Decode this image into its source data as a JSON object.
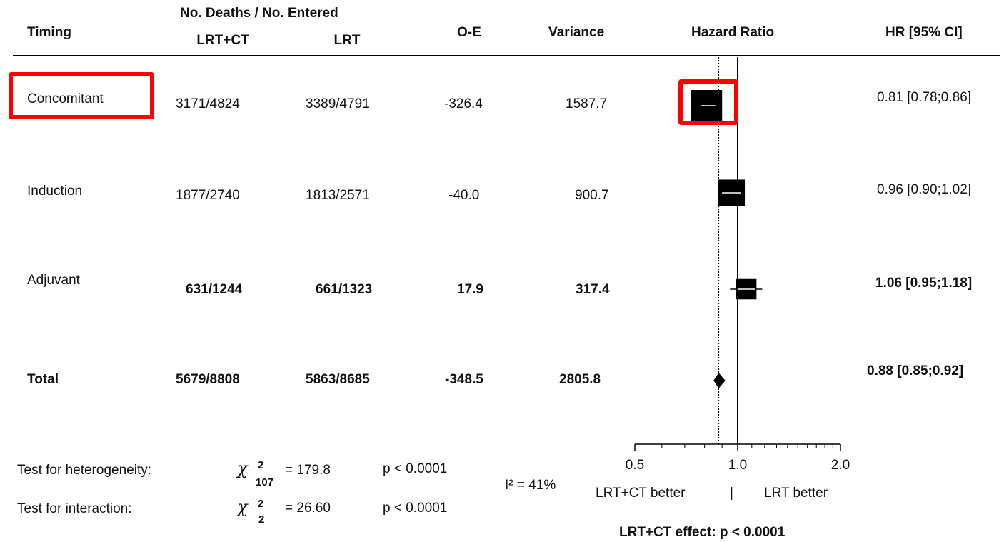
{
  "header": {
    "timing": "Timing",
    "deaths_top": "No. Deaths / No. Entered",
    "lrtct": "LRT+CT",
    "lrt": "LRT",
    "oe": "O-E",
    "variance": "Variance",
    "hazard_ratio": "Hazard Ratio",
    "hr_ci": "HR [95% CI]"
  },
  "rows": [
    {
      "label": "Concomitant",
      "lrtct": "3171/4824",
      "lrt": "3389/4791",
      "oe": "-326.4",
      "variance": "1587.7",
      "hr_text": "0.81 [0.78;0.86]"
    },
    {
      "label": "Induction",
      "lrtct": "1877/2740",
      "lrt": "1813/2571",
      "oe": "-40.0",
      "variance": "900.7",
      "hr_text": "0.96 [0.90;1.02]"
    },
    {
      "label": "Adjuvant",
      "lrtct": "631/1244",
      "lrt": "661/1323",
      "oe": "17.9",
      "variance": "317.4",
      "hr_text": "1.06 [0.95;1.18]"
    },
    {
      "label": "Total",
      "lrtct": "5679/8808",
      "lrt": "5863/8685",
      "oe": "-348.5",
      "variance": "2805.8",
      "hr_text": "0.88 [0.85;0.92]"
    }
  ],
  "tests": {
    "heterogeneity_label": "Test for heterogeneity:",
    "heterogeneity_chi": "χ",
    "heterogeneity_sup": "2",
    "heterogeneity_df": "107",
    "heterogeneity_value": "= 179.8",
    "heterogeneity_p": "p < 0.0001",
    "interaction_label": "Test for interaction:",
    "interaction_chi": "χ",
    "interaction_sup": "2",
    "interaction_df": "2",
    "interaction_value": "= 26.60",
    "interaction_p": "p < 0.0001",
    "i2": "I² = 41%"
  },
  "axis_footer": {
    "better_left": "LRT+CT better",
    "separator": "|",
    "better_right": "LRT better",
    "effect": "LRT+CT effect: p < 0.0001"
  },
  "highlight_color": "#ff0000",
  "chart_data": {
    "type": "forest",
    "xlim": [
      0.5,
      2.0
    ],
    "x_scale": "log",
    "ticks": [
      "0.5",
      "1.0",
      "2.0"
    ],
    "tick_values": [
      0.5,
      1.0,
      2.0
    ],
    "minor_ticks": [
      0.6,
      0.7,
      0.8,
      0.9,
      1.1,
      1.2,
      1.3,
      1.4,
      1.5,
      1.6,
      1.7,
      1.8,
      1.9
    ],
    "reference_line": 1.0,
    "overall_line": 0.88,
    "studies": [
      {
        "name": "Concomitant",
        "hr": 0.81,
        "lo": 0.78,
        "hi": 0.86,
        "variance": 1587.7,
        "highlighted": true
      },
      {
        "name": "Induction",
        "hr": 0.96,
        "lo": 0.9,
        "hi": 1.02,
        "variance": 900.7
      },
      {
        "name": "Adjuvant",
        "hr": 1.06,
        "lo": 0.95,
        "hi": 1.18,
        "variance": 317.4
      }
    ],
    "total": {
      "name": "Total",
      "hr": 0.88,
      "lo": 0.85,
      "hi": 0.92
    }
  }
}
